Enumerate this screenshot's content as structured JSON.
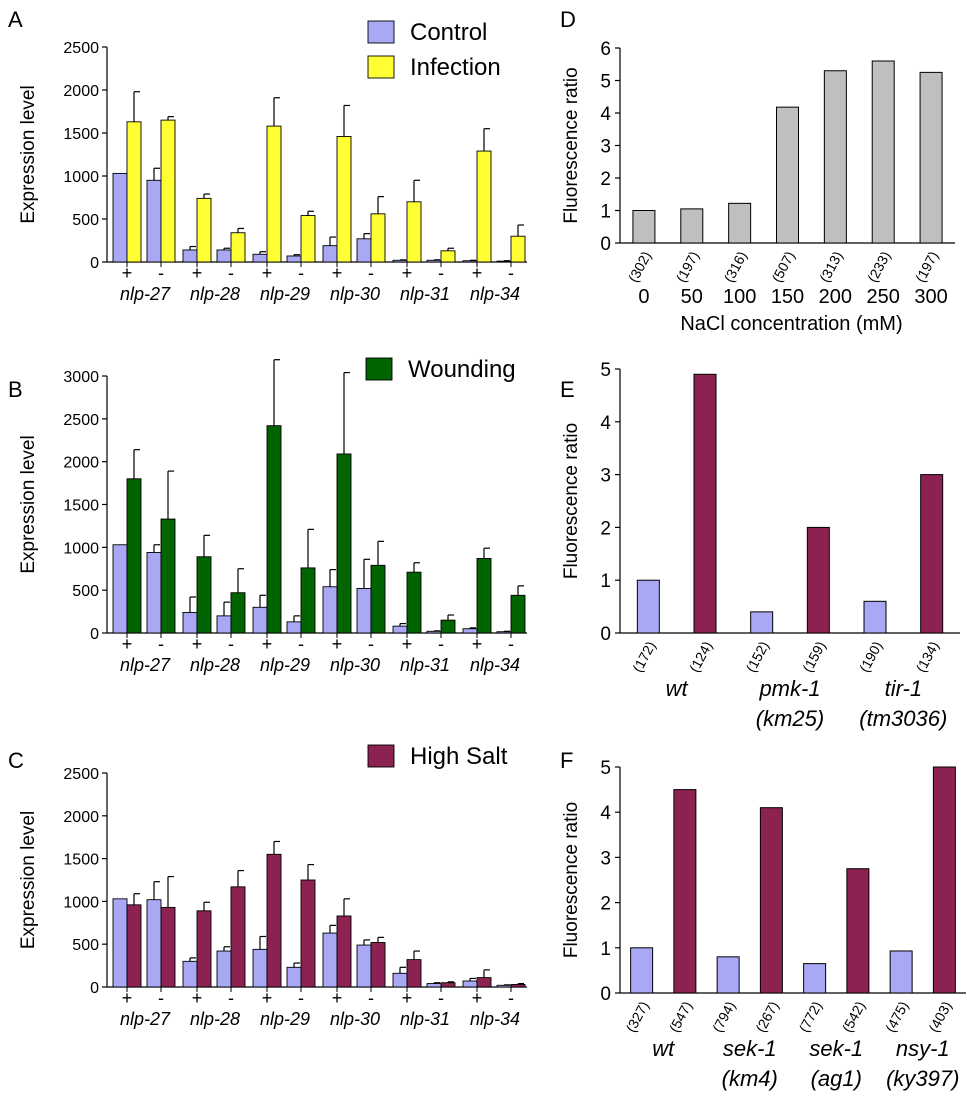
{
  "chart_data": [
    {
      "panel": "A",
      "type": "bar",
      "ylabel": "Expression level",
      "ylim": [
        0,
        2500
      ],
      "yticks": [
        0,
        500,
        1000,
        1500,
        2000,
        2500
      ],
      "genes": [
        "nlp-27",
        "nlp-28",
        "nlp-29",
        "nlp-30",
        "nlp-31",
        "nlp-34"
      ],
      "genotype_labels": [
        "+",
        "-"
      ],
      "legend_position": "top-right",
      "series": [
        {
          "name": "Control",
          "color": "#a8a8f5",
          "values": [
            1030,
            950,
            140,
            140,
            90,
            70,
            190,
            270,
            20,
            20,
            15,
            10
          ],
          "errors": [
            0,
            140,
            40,
            20,
            30,
            15,
            100,
            60,
            5,
            5,
            5,
            5
          ]
        },
        {
          "name": "Infection",
          "color": "#ffff33",
          "values": [
            1630,
            1650,
            740,
            340,
            1580,
            540,
            1460,
            560,
            700,
            130,
            1290,
            300
          ],
          "errors": [
            350,
            40,
            50,
            50,
            330,
            50,
            360,
            200,
            250,
            30,
            260,
            130
          ]
        }
      ]
    },
    {
      "panel": "B",
      "type": "bar",
      "ylabel": "Expression level",
      "ylim": [
        0,
        3000
      ],
      "yticks": [
        0,
        500,
        1000,
        1500,
        2000,
        2500,
        3000
      ],
      "genes": [
        "nlp-27",
        "nlp-28",
        "nlp-29",
        "nlp-30",
        "nlp-31",
        "nlp-34"
      ],
      "genotype_labels": [
        "+",
        "-"
      ],
      "legend_position": "top-right",
      "series": [
        {
          "name": "Control",
          "color": "#a8a8f5",
          "values": [
            1030,
            940,
            240,
            200,
            300,
            130,
            540,
            520,
            80,
            20,
            50,
            15
          ],
          "errors": [
            0,
            90,
            180,
            160,
            140,
            70,
            200,
            340,
            30,
            5,
            10,
            5
          ]
        },
        {
          "name": "Wounding",
          "color": "#006400",
          "values": [
            1800,
            1330,
            890,
            470,
            2420,
            760,
            2090,
            790,
            710,
            150,
            870,
            440
          ],
          "errors": [
            340,
            560,
            250,
            280,
            770,
            450,
            950,
            280,
            110,
            60,
            120,
            110
          ]
        }
      ]
    },
    {
      "panel": "C",
      "type": "bar",
      "ylabel": "Expression level",
      "ylim": [
        0,
        2500
      ],
      "yticks": [
        0,
        500,
        1000,
        1500,
        2000,
        2500
      ],
      "genes": [
        "nlp-27",
        "nlp-28",
        "nlp-29",
        "nlp-30",
        "nlp-31",
        "nlp-34"
      ],
      "genotype_labels": [
        "+",
        "-"
      ],
      "legend_position": "top-right",
      "series": [
        {
          "name": "Control",
          "color": "#a8a8f5",
          "values": [
            1030,
            1020,
            300,
            420,
            440,
            230,
            630,
            490,
            160,
            40,
            70,
            20
          ],
          "errors": [
            0,
            210,
            40,
            50,
            150,
            50,
            90,
            60,
            70,
            10,
            30,
            5
          ]
        },
        {
          "name": "High Salt",
          "color": "#8b2252",
          "values": [
            960,
            930,
            890,
            1170,
            1550,
            1250,
            830,
            520,
            320,
            50,
            110,
            30
          ],
          "errors": [
            130,
            360,
            100,
            190,
            150,
            180,
            200,
            60,
            100,
            10,
            90,
            10
          ]
        }
      ]
    },
    {
      "panel": "D",
      "type": "bar",
      "ylabel": "Fluorescence ratio",
      "xlabel": "NaCl concentration (mM)",
      "ylim": [
        0,
        6
      ],
      "yticks": [
        0,
        1,
        2,
        3,
        4,
        5,
        6
      ],
      "color": "#bfbfbf",
      "categories": [
        "0",
        "50",
        "100",
        "150",
        "200",
        "250",
        "300"
      ],
      "n": [
        "(302)",
        "(197)",
        "(316)",
        "(507)",
        "(313)",
        "(233)",
        "(197)"
      ],
      "values": [
        1.0,
        1.05,
        1.22,
        4.18,
        5.3,
        5.6,
        5.25
      ]
    },
    {
      "panel": "E",
      "type": "bar",
      "ylabel": "Fluorescence ratio",
      "ylim": [
        0,
        5
      ],
      "yticks": [
        0,
        1,
        2,
        3,
        4,
        5
      ],
      "groups": [
        {
          "line1": "wt",
          "line2": ""
        },
        {
          "line1": "pmk-1",
          "line2": "(km25)"
        },
        {
          "line1": "tir-1",
          "line2": "(tm3036)"
        }
      ],
      "colors": [
        "#a8a8f5",
        "#8b2252"
      ],
      "n": [
        "(172)",
        "(124)",
        "(152)",
        "(159)",
        "(190)",
        "(134)"
      ],
      "values": [
        1.0,
        4.9,
        0.4,
        2.0,
        0.6,
        3.0
      ]
    },
    {
      "panel": "F",
      "type": "bar",
      "ylabel": "Fluorescence ratio",
      "ylim": [
        0,
        5
      ],
      "yticks": [
        0,
        1,
        2,
        3,
        4,
        5
      ],
      "groups": [
        {
          "line1": "wt",
          "line2": ""
        },
        {
          "line1": "sek-1",
          "line2": "(km4)"
        },
        {
          "line1": "sek-1",
          "line2": "(ag1)"
        },
        {
          "line1": "nsy-1",
          "line2": "(ky397)"
        }
      ],
      "colors": [
        "#a8a8f5",
        "#8b2252"
      ],
      "n": [
        "(327)",
        "(547)",
        "(794)",
        "(267)",
        "(772)",
        "(542)",
        "(475)",
        "(403)"
      ],
      "values": [
        1.0,
        4.5,
        0.8,
        4.1,
        0.65,
        2.75,
        0.93,
        5.0
      ]
    }
  ]
}
